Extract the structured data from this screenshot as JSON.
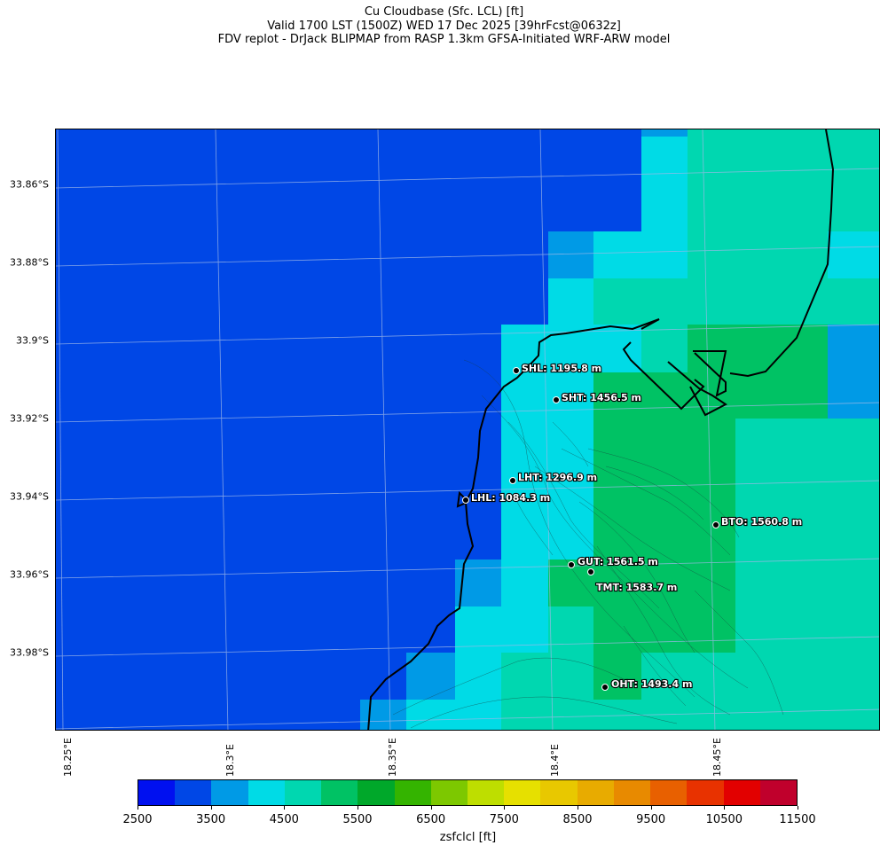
{
  "header": {
    "line1": "Cu Cloudbase (Sfc. LCL) [ft]",
    "line2": "Valid 1700 LST (1500Z) WED 17 Dec 2025 [39hrFcst@0632z]",
    "line3": "FDV replot - DrJack BLIPMAP from RASP 1.3km GFSA-Initiated WRF-ARW model"
  },
  "axes": {
    "lat_ticks": [
      "33.86°S",
      "33.88°S",
      "33.9°S",
      "33.92°S",
      "33.94°S",
      "33.96°S",
      "33.98°S"
    ],
    "lon_ticks": [
      "18.25°E",
      "18.3°E",
      "18.35°E",
      "18.4°E",
      "18.45°E"
    ]
  },
  "stations": [
    {
      "code": "SHL",
      "label": "SHL: 1195.8 m"
    },
    {
      "code": "SHT",
      "label": "SHT: 1456.5 m"
    },
    {
      "code": "LHT",
      "label": "LHT: 1296.9 m"
    },
    {
      "code": "LHL",
      "label": "LHL: 1084.3 m"
    },
    {
      "code": "BTO",
      "label": "BTO: 1560.8 m"
    },
    {
      "code": "GUT",
      "label": "GUT: 1561.5 m"
    },
    {
      "code": "TMT",
      "label": "TMT: 1583.7 m"
    },
    {
      "code": "OHT",
      "label": "OHT: 1493.4 m"
    }
  ],
  "colorbar": {
    "label": "zsfclcl [ft]",
    "tick_labels": [
      "2500",
      "3500",
      "4500",
      "5500",
      "6500",
      "7500",
      "8500",
      "9500",
      "10500",
      "11500"
    ],
    "colors": [
      "#0010f0",
      "#0047e6",
      "#009ae6",
      "#00dbe6",
      "#00d7b0",
      "#00c264",
      "#00a82a",
      "#34b400",
      "#7dc800",
      "#bede00",
      "#e6e000",
      "#e8c800",
      "#e8ab00",
      "#e88a00",
      "#e86000",
      "#e83200",
      "#e20000",
      "#c0002c"
    ]
  }
}
